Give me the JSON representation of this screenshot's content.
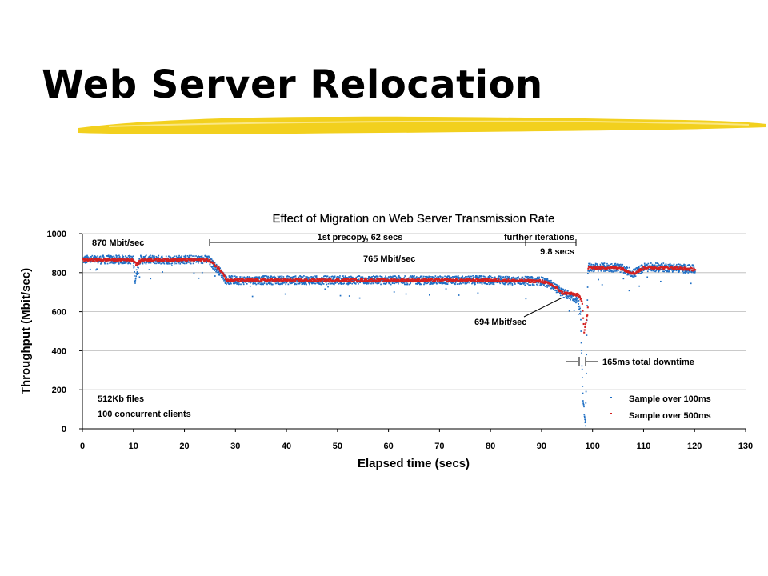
{
  "slide": {
    "title": "Web Server Relocation",
    "accent_color": "#f2d01e"
  },
  "chart_data": {
    "type": "scatter",
    "title": "Effect of Migration on Web Server Transmission Rate",
    "xlabel": "Elapsed time (secs)",
    "ylabel": "Throughput (Mbit/sec)",
    "xlim": [
      0,
      130
    ],
    "ylim": [
      0,
      1000
    ],
    "x_ticks": [
      0,
      10,
      20,
      30,
      40,
      50,
      60,
      70,
      80,
      90,
      100,
      110,
      120,
      130
    ],
    "y_ticks": [
      0,
      200,
      400,
      600,
      800,
      1000
    ],
    "grid": "horizontal",
    "legend_position": "bottom-right",
    "series": [
      {
        "name": "Sample over 100ms",
        "color": "#1f6fc4",
        "x": [
          0,
          9.8,
          10.2,
          11,
          24.5,
          26,
          27.5,
          28,
          40,
          60,
          80,
          90,
          92,
          94,
          95,
          96,
          97,
          97.5,
          98,
          98.5,
          98.8,
          99,
          105,
          108,
          110,
          115,
          120
        ],
        "y": [
          870,
          870,
          760,
          870,
          870,
          830,
          790,
          765,
          765,
          765,
          765,
          760,
          740,
          700,
          690,
          680,
          660,
          600,
          150,
          20,
          600,
          830,
          830,
          800,
          830,
          830,
          820
        ]
      },
      {
        "name": "Sample over 500ms",
        "color": "#d42020",
        "x": [
          0,
          9.8,
          10.5,
          11.5,
          24.5,
          26,
          27.5,
          28,
          40,
          60,
          80,
          90,
          92,
          94,
          96,
          97,
          97.8,
          98.2,
          98.9,
          99,
          105,
          108,
          110,
          115,
          120
        ],
        "y": [
          870,
          870,
          845,
          870,
          870,
          840,
          800,
          765,
          765,
          765,
          765,
          760,
          740,
          700,
          695,
          690,
          660,
          500,
          600,
          830,
          830,
          800,
          830,
          830,
          820
        ]
      }
    ],
    "annotations": {
      "start_rate": "870 Mbit/sec",
      "precopy": "1st precopy, 62 secs",
      "further_line1": "further iterations",
      "further_line2": "9.8 secs",
      "mid_rate": "765 Mbit/sec",
      "end_rate": "694 Mbit/sec",
      "downtime": "165ms total downtime",
      "note_line1": "512Kb files",
      "note_line2": "100 concurrent clients"
    }
  }
}
